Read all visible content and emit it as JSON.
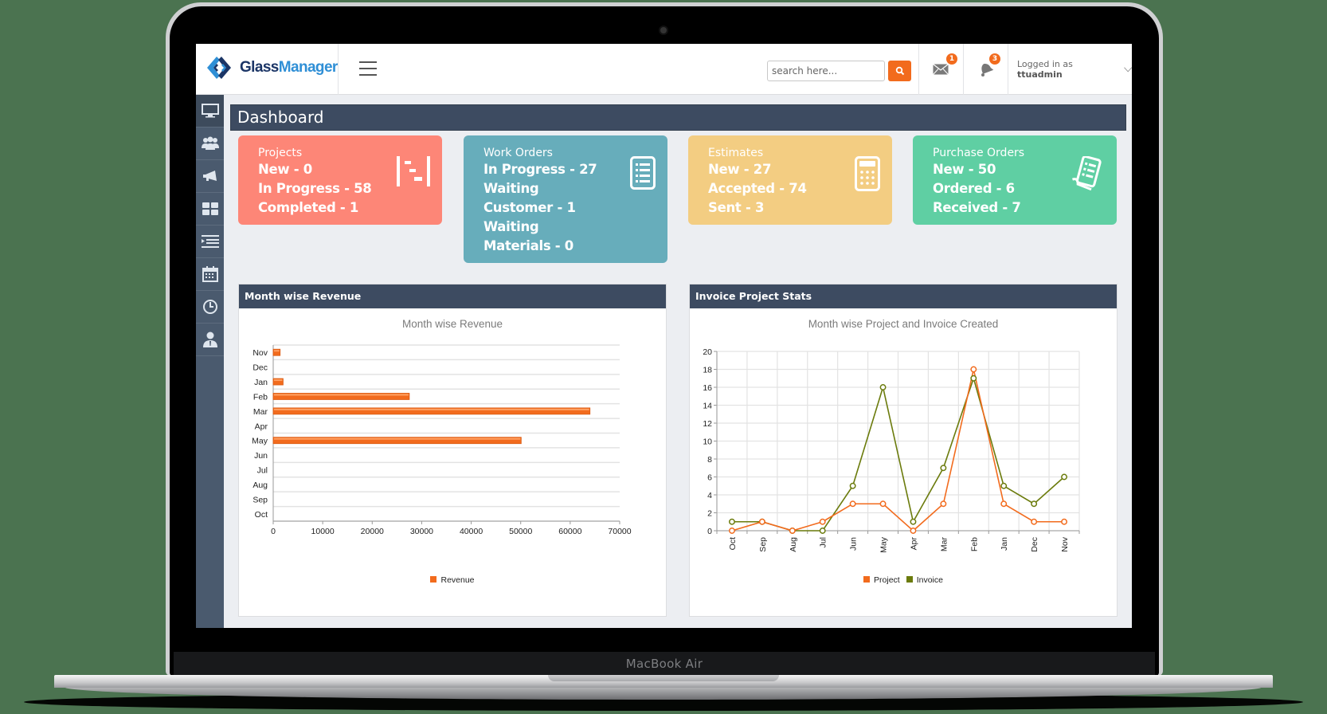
{
  "device": {
    "label": "MacBook Air"
  },
  "header": {
    "logo": {
      "part1": "Glass",
      "part2": "Manager"
    },
    "search": {
      "placeholder": "search here..."
    },
    "messages_badge": "1",
    "notifications_badge": "3",
    "user": {
      "prefix": "Logged in as",
      "username": "ttuadmin"
    }
  },
  "sidebar": {
    "items": [
      {
        "name": "dashboard",
        "icon": "monitor-icon"
      },
      {
        "name": "customers",
        "icon": "users-icon"
      },
      {
        "name": "marketing",
        "icon": "megaphone-icon"
      },
      {
        "name": "modules",
        "icon": "grid-icon"
      },
      {
        "name": "lists",
        "icon": "list-indent-icon"
      },
      {
        "name": "calendar",
        "icon": "calendar-icon"
      },
      {
        "name": "time",
        "icon": "clock-icon"
      },
      {
        "name": "users",
        "icon": "person-icon"
      }
    ]
  },
  "page": {
    "title": "Dashboard"
  },
  "cards": [
    {
      "title": "Projects",
      "color": "#fd8677",
      "icon": "gantt-icon",
      "lines": [
        "New - 0",
        "In Progress - 58",
        "Completed - 1"
      ]
    },
    {
      "title": "Work Orders",
      "color": "#67adbb",
      "icon": "document-list-icon",
      "lines": [
        "In Progress - 27",
        "Waiting",
        "Customer - 1",
        "Waiting",
        "Materials - 0"
      ]
    },
    {
      "title": "Estimates",
      "color": "#f3cd82",
      "icon": "calculator-icon",
      "lines": [
        "New - 27",
        "Accepted - 74",
        "Sent - 3"
      ]
    },
    {
      "title": "Purchase Orders",
      "color": "#5fcfa3",
      "icon": "receipt-icon",
      "lines": [
        "New - 50",
        "Ordered - 6",
        "Received - 7"
      ]
    }
  ],
  "panels": {
    "revenue": {
      "header": "Month wise Revenue"
    },
    "invoice": {
      "header": "Invoice Project Stats"
    }
  },
  "chart_data": [
    {
      "type": "bar",
      "orientation": "horizontal",
      "title": "Month wise Revenue",
      "categories": [
        "Nov",
        "Dec",
        "Jan",
        "Feb",
        "Mar",
        "Apr",
        "May",
        "Jun",
        "Jul",
        "Aug",
        "Sep",
        "Oct"
      ],
      "series": [
        {
          "name": "Revenue",
          "color": "#f26b1d",
          "values": [
            1400,
            0,
            2000,
            27500,
            64000,
            0,
            50100,
            0,
            0,
            0,
            0,
            0
          ]
        }
      ],
      "xlabel": "",
      "ylabel": "",
      "xlim": [
        0,
        70000
      ],
      "xticks": [
        0,
        10000,
        20000,
        30000,
        40000,
        50000,
        60000,
        70000
      ],
      "grid": true,
      "legend_position": "bottom"
    },
    {
      "type": "line",
      "title": "Month wise Project and Invoice Created",
      "categories": [
        "Oct",
        "Sep",
        "Aug",
        "Jul",
        "Jun",
        "May",
        "Apr",
        "Mar",
        "Feb",
        "Jan",
        "Dec",
        "Nov"
      ],
      "series": [
        {
          "name": "Project",
          "color": "#f26b1d",
          "values": [
            0,
            1,
            0,
            1,
            3,
            3,
            0,
            3,
            18,
            3,
            1,
            1
          ]
        },
        {
          "name": "Invoice",
          "color": "#6b7b0c",
          "values": [
            1,
            1,
            0,
            0,
            5,
            16,
            1,
            7,
            17,
            5,
            3,
            6
          ]
        }
      ],
      "xlabel": "",
      "ylabel": "",
      "ylim": [
        0,
        20
      ],
      "yticks": [
        0,
        2,
        4,
        6,
        8,
        10,
        12,
        14,
        16,
        18,
        20
      ],
      "grid": true,
      "legend_position": "bottom"
    }
  ]
}
